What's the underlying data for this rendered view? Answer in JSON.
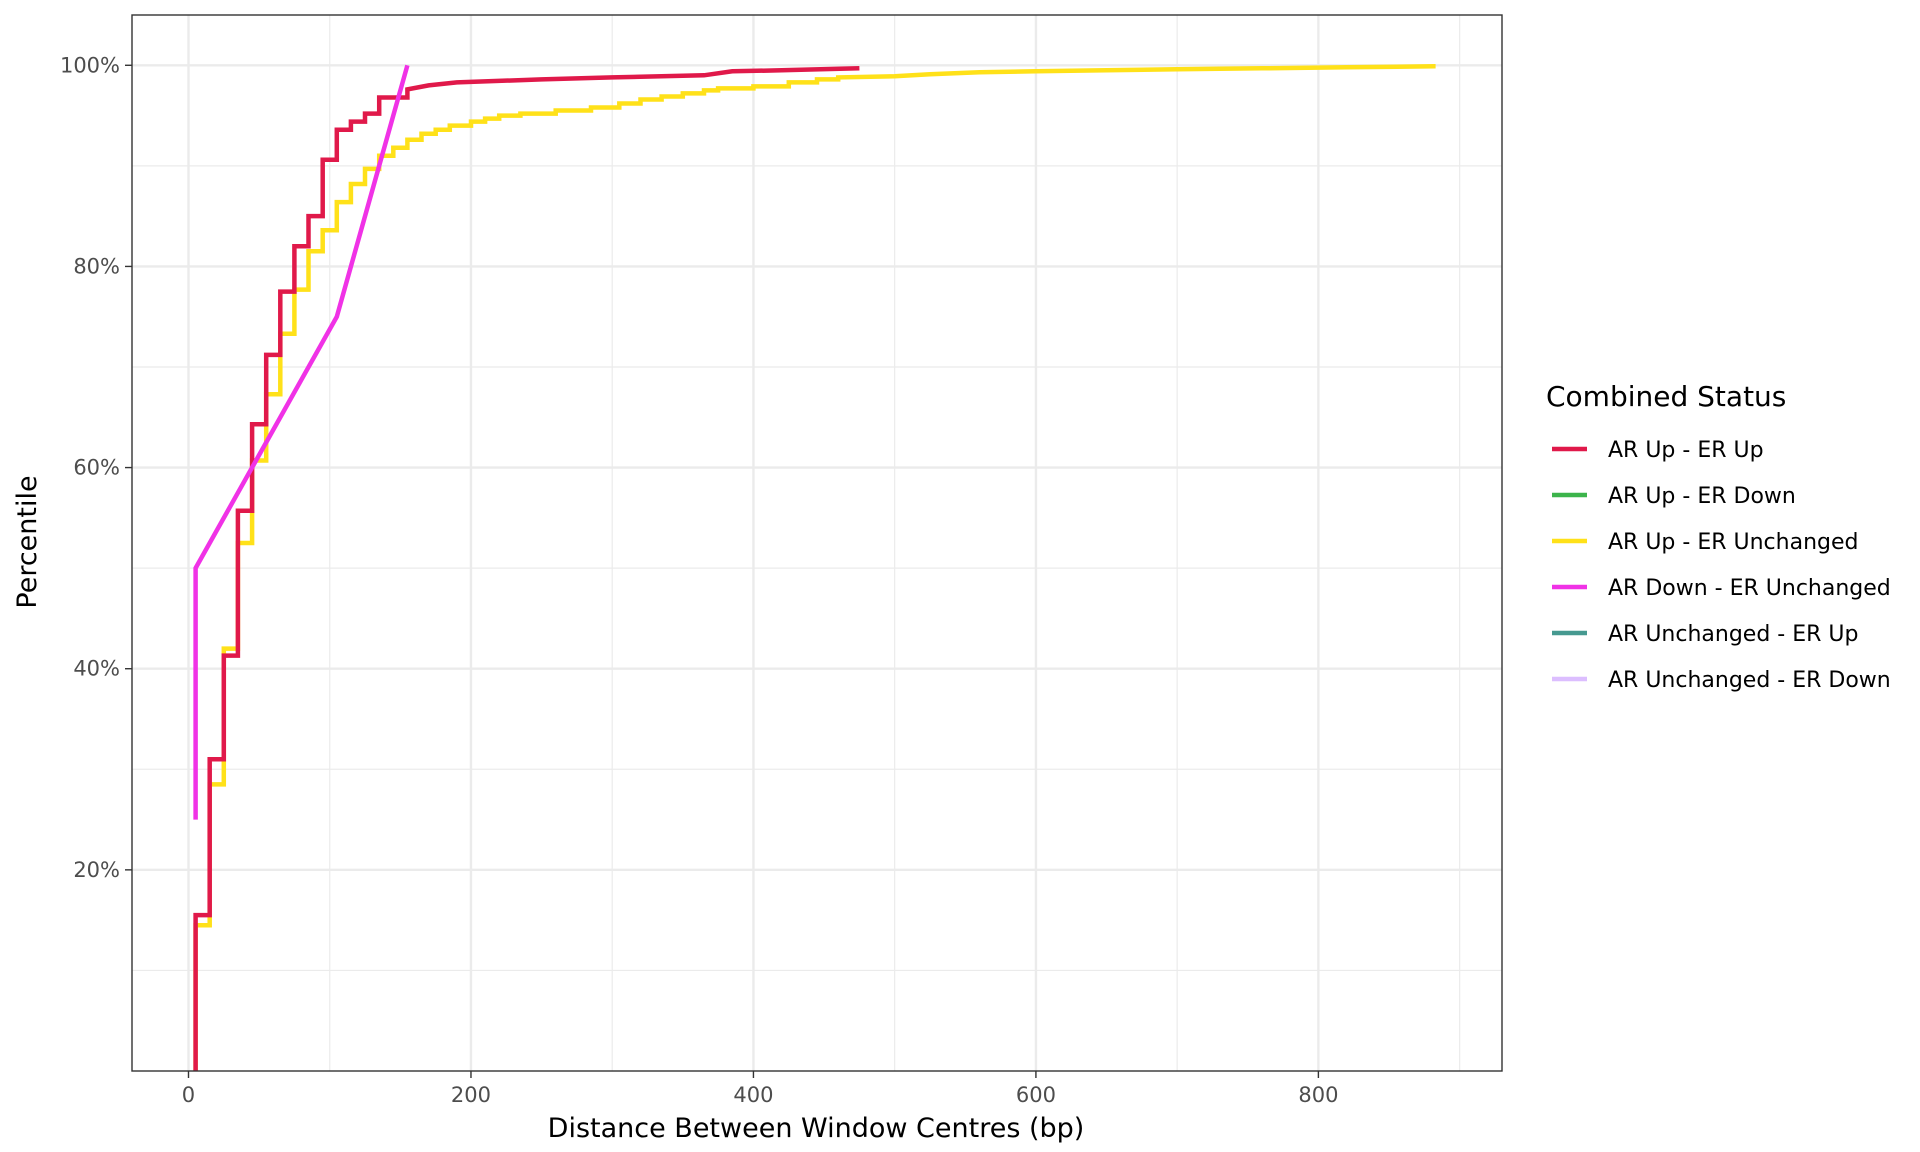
{
  "chart_data": {
    "type": "line",
    "step": true,
    "xlabel": "Distance Between Window Centres (bp)",
    "ylabel": "Percentile",
    "xlim": [
      -40,
      930
    ],
    "ylim": [
      0,
      1.05
    ],
    "x_ticks": [
      0,
      200,
      400,
      600,
      800
    ],
    "x_tick_labels": [
      "0",
      "200",
      "400",
      "600",
      "800"
    ],
    "y_ticks": [
      0.2,
      0.4,
      0.6,
      0.8,
      1.0
    ],
    "y_tick_labels": [
      "20%",
      "40%",
      "60%",
      "80%",
      "100%"
    ],
    "grid": true,
    "legend": {
      "title": "Combined Status",
      "position": "right",
      "entries": [
        {
          "label": "AR Up - ER Up",
          "color": "#e0194a"
        },
        {
          "label": "AR Up - ER Down",
          "color": "#3cb44b"
        },
        {
          "label": "AR Up - ER Unchanged",
          "color": "#ffe119"
        },
        {
          "label": "AR Down - ER Unchanged",
          "color": "#f032e6"
        },
        {
          "label": "AR Unchanged - ER Up",
          "color": "#469990"
        },
        {
          "label": "AR Unchanged - ER Down",
          "color": "#dcbeff"
        }
      ]
    },
    "series": [
      {
        "name": "AR Up - ER Unchanged",
        "color": "#ffe119",
        "points": [
          [
            5,
            0
          ],
          [
            5,
            0.145
          ],
          [
            15,
            0.145
          ],
          [
            15,
            0.285
          ],
          [
            25,
            0.285
          ],
          [
            25,
            0.42
          ],
          [
            35,
            0.42
          ],
          [
            35,
            0.525
          ],
          [
            45,
            0.525
          ],
          [
            45,
            0.607
          ],
          [
            55,
            0.607
          ],
          [
            55,
            0.673
          ],
          [
            65,
            0.673
          ],
          [
            65,
            0.733
          ],
          [
            75,
            0.733
          ],
          [
            75,
            0.777
          ],
          [
            85,
            0.777
          ],
          [
            85,
            0.815
          ],
          [
            95,
            0.815
          ],
          [
            95,
            0.836
          ],
          [
            105,
            0.836
          ],
          [
            105,
            0.864
          ],
          [
            115,
            0.864
          ],
          [
            115,
            0.882
          ],
          [
            125,
            0.882
          ],
          [
            125,
            0.897
          ],
          [
            135,
            0.897
          ],
          [
            135,
            0.91
          ],
          [
            145,
            0.91
          ],
          [
            145,
            0.918
          ],
          [
            155,
            0.918
          ],
          [
            155,
            0.926
          ],
          [
            165,
            0.926
          ],
          [
            165,
            0.932
          ],
          [
            175,
            0.932
          ],
          [
            175,
            0.936
          ],
          [
            185,
            0.936
          ],
          [
            185,
            0.94
          ],
          [
            200,
            0.94
          ],
          [
            200,
            0.944
          ],
          [
            210,
            0.944
          ],
          [
            210,
            0.947
          ],
          [
            220,
            0.947
          ],
          [
            220,
            0.95
          ],
          [
            235,
            0.95
          ],
          [
            235,
            0.952
          ],
          [
            260,
            0.952
          ],
          [
            260,
            0.955
          ],
          [
            285,
            0.955
          ],
          [
            285,
            0.958
          ],
          [
            305,
            0.958
          ],
          [
            305,
            0.962
          ],
          [
            320,
            0.962
          ],
          [
            320,
            0.966
          ],
          [
            335,
            0.966
          ],
          [
            335,
            0.969
          ],
          [
            350,
            0.969
          ],
          [
            350,
            0.972
          ],
          [
            365,
            0.972
          ],
          [
            365,
            0.975
          ],
          [
            375,
            0.975
          ],
          [
            375,
            0.977
          ],
          [
            400,
            0.977
          ],
          [
            400,
            0.979
          ],
          [
            425,
            0.979
          ],
          [
            425,
            0.983
          ],
          [
            445,
            0.983
          ],
          [
            445,
            0.986
          ],
          [
            460,
            0.986
          ],
          [
            460,
            0.988
          ],
          [
            500,
            0.989
          ],
          [
            525,
            0.991
          ],
          [
            560,
            0.993
          ],
          [
            600,
            0.994
          ],
          [
            650,
            0.995
          ],
          [
            700,
            0.996
          ],
          [
            760,
            0.997
          ],
          [
            820,
            0.998
          ],
          [
            883,
            0.999
          ]
        ]
      },
      {
        "name": "AR Up - ER Up",
        "color": "#e0194a",
        "points": [
          [
            5,
            0
          ],
          [
            5,
            0.155
          ],
          [
            15,
            0.155
          ],
          [
            15,
            0.31
          ],
          [
            25,
            0.31
          ],
          [
            25,
            0.413
          ],
          [
            35,
            0.413
          ],
          [
            35,
            0.557
          ],
          [
            45,
            0.557
          ],
          [
            45,
            0.643
          ],
          [
            55,
            0.643
          ],
          [
            55,
            0.712
          ],
          [
            65,
            0.712
          ],
          [
            65,
            0.775
          ],
          [
            75,
            0.775
          ],
          [
            75,
            0.82
          ],
          [
            85,
            0.82
          ],
          [
            85,
            0.85
          ],
          [
            95,
            0.85
          ],
          [
            95,
            0.906
          ],
          [
            105,
            0.906
          ],
          [
            105,
            0.936
          ],
          [
            115,
            0.936
          ],
          [
            115,
            0.944
          ],
          [
            125,
            0.944
          ],
          [
            125,
            0.952
          ],
          [
            135,
            0.952
          ],
          [
            135,
            0.968
          ],
          [
            155,
            0.968
          ],
          [
            155,
            0.976
          ],
          [
            170,
            0.98
          ],
          [
            190,
            0.983
          ],
          [
            250,
            0.986
          ],
          [
            300,
            0.988
          ],
          [
            365,
            0.99
          ],
          [
            385,
            0.994
          ],
          [
            420,
            0.995
          ],
          [
            475,
            0.997
          ]
        ]
      },
      {
        "name": "AR Down - ER Unchanged",
        "color": "#f032e6",
        "points": [
          [
            5,
            0.25
          ],
          [
            5,
            0.5
          ],
          [
            105,
            0.75
          ],
          [
            155,
            1.0
          ]
        ]
      }
    ]
  }
}
